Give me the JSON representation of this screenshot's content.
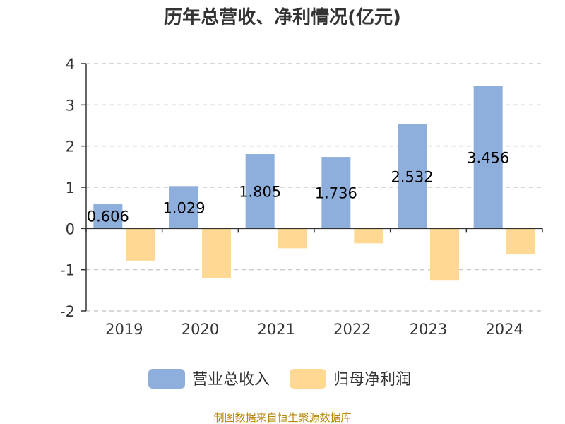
{
  "chart_data": {
    "type": "bar",
    "title": "历年总营收、净利情况(亿元)",
    "categories": [
      "2019",
      "2020",
      "2021",
      "2022",
      "2023",
      "2024"
    ],
    "series": [
      {
        "name": "营业总收入",
        "color": "#8eaedc",
        "values": [
          0.606,
          1.029,
          1.805,
          1.736,
          2.532,
          3.456
        ]
      },
      {
        "name": "归母净利润",
        "color": "#ffd993",
        "values": [
          -0.78,
          -1.2,
          -0.48,
          -0.36,
          -1.25,
          -0.63
        ]
      }
    ],
    "data_labels": [
      "0.606",
      "1.029",
      "1.805",
      "1.736",
      "2.532",
      "3.456"
    ],
    "yticks": [
      "-2",
      "-1",
      "0",
      "1",
      "2",
      "3",
      "4"
    ],
    "ylim": [
      -2,
      4
    ],
    "grid": true,
    "legend_position": "bottom",
    "source": "制图数据来自恒生聚源数据库"
  }
}
